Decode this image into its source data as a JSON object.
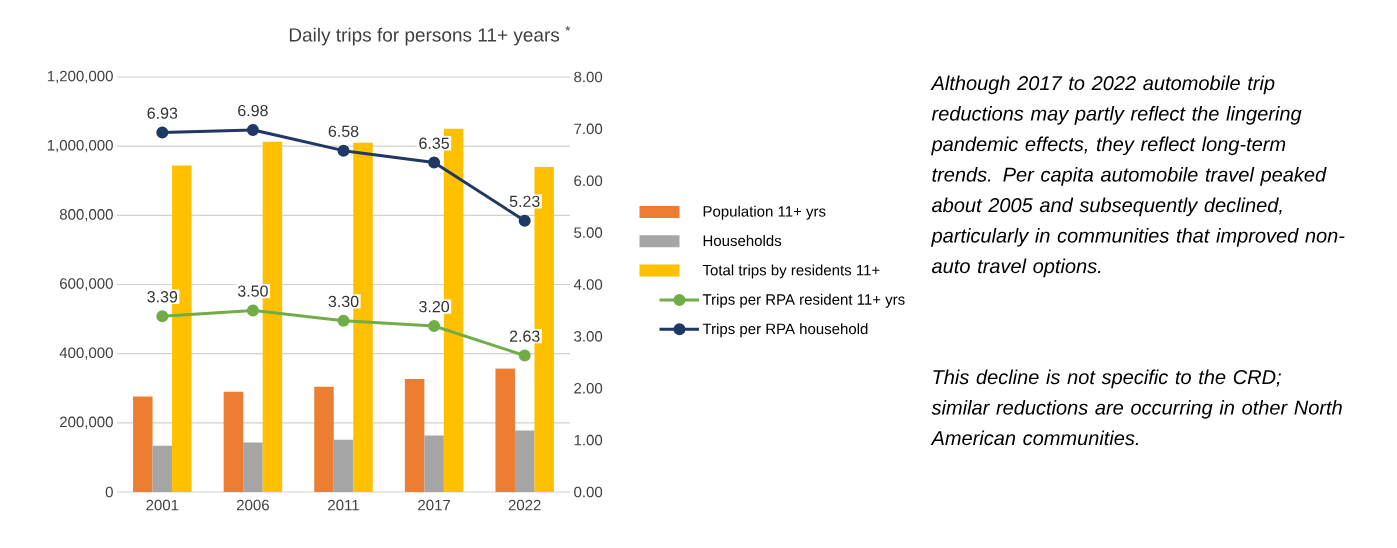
{
  "chart_data": {
    "type": "bar",
    "title": "Daily trips for persons 11+ years $^{*}$",
    "categories": [
      "2001",
      "2006",
      "2011",
      "2017",
      "2022"
    ],
    "series": [
      {
        "name": "Population 11+ yrs",
        "color": "#ed7d31",
        "values": [
          276000,
          290000,
          304000,
          327000,
          357000
        ]
      },
      {
        "name": "Households",
        "color": "#a5a5a5",
        "values": [
          134000,
          143000,
          151000,
          163000,
          178000
        ]
      },
      {
        "name": "Total trips by residents 11+",
        "color": "#ffc000",
        "values": [
          944000,
          1013000,
          1010000,
          1051000,
          940000
        ]
      },
      {
        "name": "Trips per RPA resident 11+ yrs",
        "type": "line",
        "axis": "y2",
        "marker": "circle",
        "color": "#70ad47",
        "values": [
          3.39,
          3.5,
          3.3,
          3.2,
          2.63
        ],
        "value_labels": [
          "3.39",
          "3.50",
          "3.30",
          "3.20",
          "2.63"
        ]
      },
      {
        "name": "Trips per RPA household",
        "type": "line",
        "axis": "y2",
        "marker": "circle",
        "color": "#203864",
        "values": [
          6.93,
          6.98,
          6.58,
          6.35,
          5.23
        ],
        "value_labels": [
          "6.93",
          "6.98",
          "6.58",
          "6.35",
          "5.23"
        ]
      }
    ],
    "ylim": [
      0,
      1200000
    ],
    "yticks": [
      {
        "value": 0,
        "label": "0"
      },
      {
        "value": 200000,
        "label": "200,000"
      },
      {
        "value": 400000,
        "label": "400,000"
      },
      {
        "value": 600000,
        "label": "600,000"
      },
      {
        "value": 800000,
        "label": "800,000"
      },
      {
        "value": 1000000,
        "label": "1,000,000"
      },
      {
        "value": 1200000,
        "label": "1,200,000"
      }
    ],
    "y2lim": [
      0,
      8
    ],
    "y2ticks": [
      {
        "value": 0,
        "label": "0.00"
      },
      {
        "value": 1,
        "label": "1.00"
      },
      {
        "value": 2,
        "label": "2.00"
      },
      {
        "value": 3,
        "label": "3.00"
      },
      {
        "value": 4,
        "label": "4.00"
      },
      {
        "value": 5,
        "label": "5.00"
      },
      {
        "value": 6,
        "label": "6.00"
      },
      {
        "value": 7,
        "label": "7.00"
      },
      {
        "value": 8,
        "label": "8.00"
      }
    ],
    "grid": "y",
    "legend": "right",
    "annotations": [
      "*Although 2017 to 2022 automobile trip reductions may partly reflect the lingering pandemic effects, they reflect long-term trends. Per capita automobile travel peaked about 2005 and subsequently declined, particularly in communities that improved non-auto travel options.*",
      "*This decline is not specific to the CRD; similar reductions are occurring in other North American communities.*"
    ]
  }
}
